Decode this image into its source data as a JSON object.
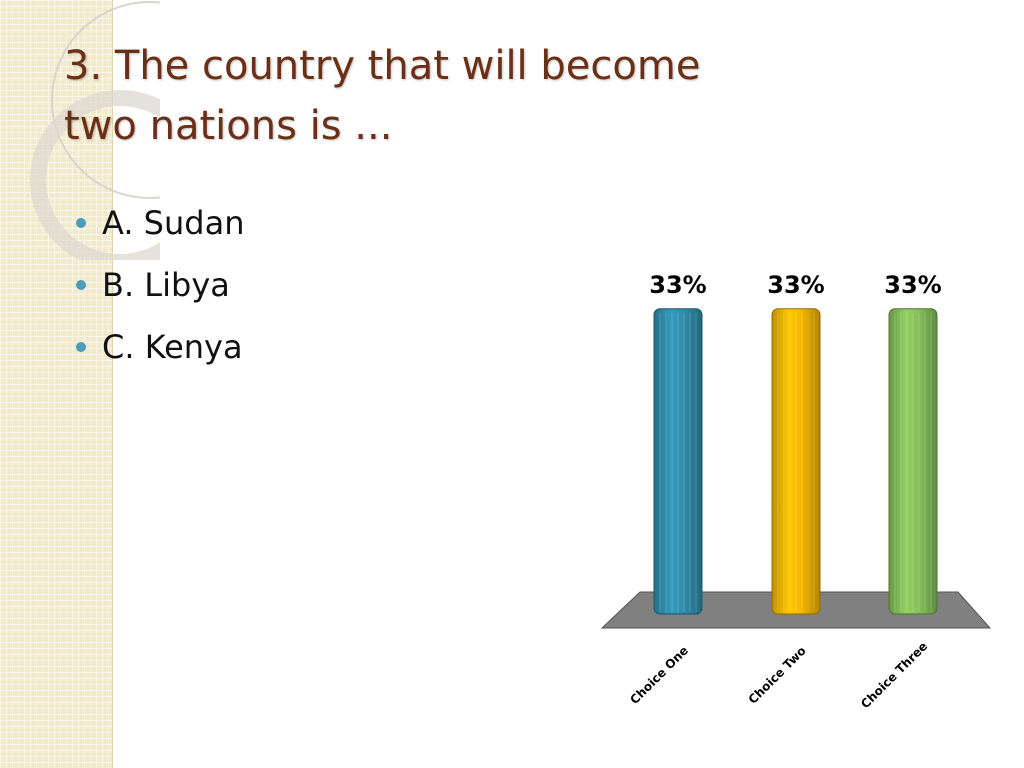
{
  "slide": {
    "title_line1": "3.  The country that will become",
    "title_line2": "two nations is ...",
    "choices": [
      {
        "label": "A.  Sudan"
      },
      {
        "label": "B.  Libya"
      },
      {
        "label": "C.  Kenya"
      }
    ]
  },
  "colors": {
    "title": "#6b2f16",
    "bullet": "#4b9dbb",
    "sidebar": "#f3e9cc",
    "floor": "#808080"
  },
  "chart_data": {
    "type": "bar",
    "categories": [
      "Choice One",
      "Choice Two",
      "Choice Three"
    ],
    "values": [
      33,
      33,
      33
    ],
    "data_labels": [
      "33%",
      "33%",
      "33%"
    ],
    "colors": [
      "#2f8fae",
      "#f5b800",
      "#86c15a"
    ],
    "ylim": [
      0,
      40
    ],
    "title": "",
    "xlabel": "",
    "ylabel": "",
    "grid": false,
    "legend": "none"
  }
}
